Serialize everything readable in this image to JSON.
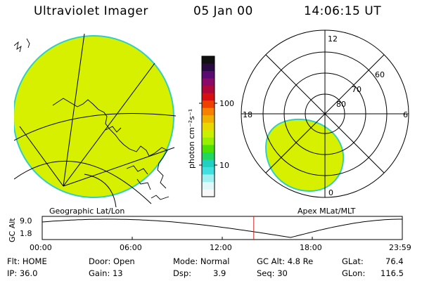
{
  "header": {
    "title": "Ultraviolet Imager",
    "date": "05 Jan 00",
    "time": "14:06:15 UT"
  },
  "maps": {
    "left_label": "Geographic Lat/Lon",
    "right_label": "Apex MLat/MLT",
    "polar_rings": [
      "80",
      "70",
      "60"
    ],
    "polar_mlt": [
      "12",
      "18",
      "6",
      "0"
    ]
  },
  "colorbar": {
    "unit_label": "photon cm⁻²s⁻¹",
    "ticks": [
      "100",
      "10"
    ],
    "colors": [
      "#101010",
      "#2a0a40",
      "#5a0a70",
      "#8a0a6a",
      "#b0083a",
      "#d61010",
      "#f04000",
      "#f88000",
      "#f0b000",
      "#e8d800",
      "#c8f000",
      "#98f000",
      "#50e000",
      "#20d860",
      "#20d0c0",
      "#40e0e0",
      "#a0f0f0",
      "#e0f8f8",
      "#f8f8f8"
    ]
  },
  "alt_plot": {
    "ylabel": "GC Alt",
    "y_ticks": [
      "9.0",
      "1.8"
    ],
    "x_ticks": [
      "00:00",
      "06:00",
      "12:00",
      "18:00",
      "23:59"
    ],
    "current_time_hours": 14.1
  },
  "info": {
    "flt": "Flt: HOME",
    "ip": "IP: 36.0",
    "door": "Door: Open",
    "gain": "Gain: 13",
    "mode": "Mode: Normal",
    "dsp_label": "Dsp:",
    "dsp_value": "3.9",
    "gc_alt": "GC Alt: 4.8 Re",
    "seq": "Seq: 30",
    "glat_label": "GLat:",
    "glat_value": "76.4",
    "glon_label": "GLon:",
    "glon_value": "116.5"
  },
  "style": {
    "aurora_fill": "#d6f000",
    "aurora_edge": "#30d0c0",
    "marker_color": "#cc2020"
  }
}
